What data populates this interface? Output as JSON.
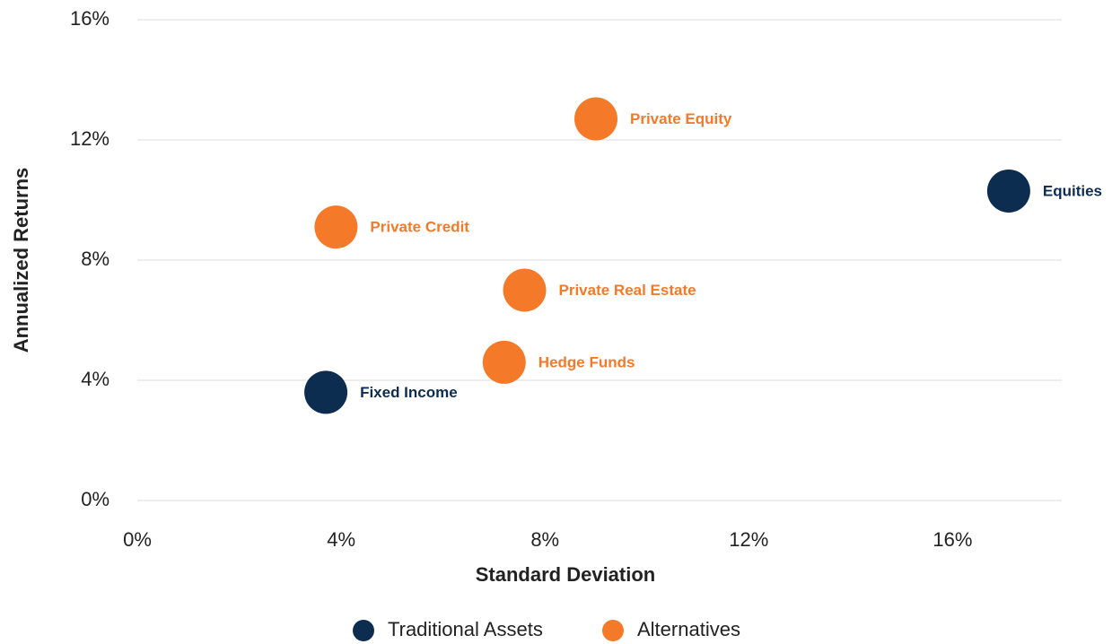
{
  "chart_data": {
    "type": "scatter",
    "xlabel": "Standard Deviation",
    "ylabel": "Annualized Returns",
    "xlim": [
      0,
      18
    ],
    "ylim": [
      0,
      16
    ],
    "xticks": [
      {
        "value": 0,
        "label": "0%"
      },
      {
        "value": 4,
        "label": "4%"
      },
      {
        "value": 8,
        "label": "8%"
      },
      {
        "value": 12,
        "label": "12%"
      },
      {
        "value": 16,
        "label": "16%"
      }
    ],
    "yticks": [
      {
        "value": 0,
        "label": "0%"
      },
      {
        "value": 4,
        "label": "4%"
      },
      {
        "value": 8,
        "label": "8%"
      },
      {
        "value": 12,
        "label": "12%"
      },
      {
        "value": 16,
        "label": "16%"
      }
    ],
    "grid": true,
    "legend": "bottom",
    "series": [
      {
        "name": "Traditional Assets",
        "color": "#0c2c50",
        "x": [
          3.7,
          17.1
        ],
        "values": [
          3.6,
          10.3
        ],
        "labels": [
          "Fixed Income",
          "Equities"
        ]
      },
      {
        "name": "Alternatives",
        "color": "#f47a2a",
        "x": [
          3.9,
          9.0,
          7.6,
          7.2
        ],
        "values": [
          9.1,
          12.7,
          7.0,
          4.6
        ],
        "labels": [
          "Private Credit",
          "Private Equity",
          "Private Real Estate",
          "Hedge Funds"
        ]
      }
    ]
  }
}
